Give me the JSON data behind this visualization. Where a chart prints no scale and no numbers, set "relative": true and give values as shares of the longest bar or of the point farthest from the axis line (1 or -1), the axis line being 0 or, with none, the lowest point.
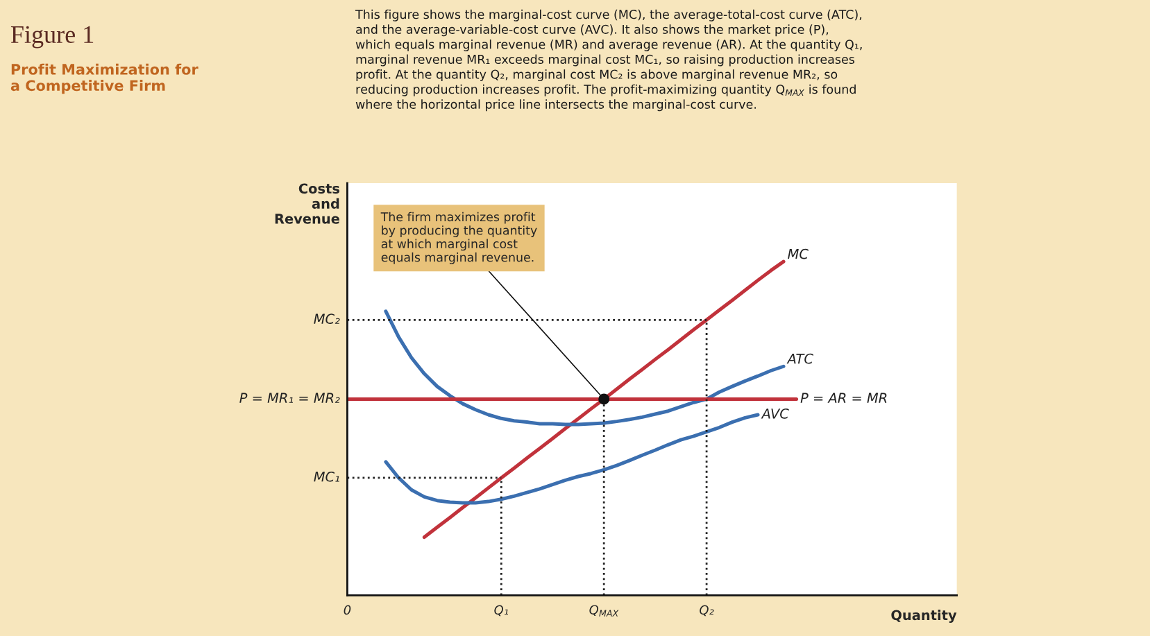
{
  "chart_data": {
    "type": "line",
    "title": "Figure 1",
    "subtitle": "Profit Maximization for\na Competitive Firm",
    "xlabel": "Quantity",
    "ylabel": "Costs\nand\nRevenue",
    "relative": true,
    "legend": false,
    "grid": false,
    "categories": [
      "0",
      null,
      null,
      null,
      null,
      null,
      null,
      null,
      null,
      null,
      null,
      null,
      "Q₁",
      null,
      null,
      null,
      null,
      null,
      null,
      null,
      "Q$_{MAX}$",
      null,
      null,
      null,
      null,
      null,
      null,
      null,
      "Q₂",
      null,
      null,
      null,
      null,
      null,
      null,
      null,
      null,
      null,
      null,
      null,
      null,
      null,
      null,
      null,
      null,
      null,
      null,
      null
    ],
    "series": [
      {
        "name": "MC",
        "color": "#c1323b",
        "values": [
          null,
          null,
          null,
          null,
          null,
          null,
          0.174,
          0.204,
          0.233,
          0.263,
          0.292,
          0.322,
          0.352,
          0.381,
          0.411,
          0.44,
          0.47,
          0.5,
          0.529,
          0.559,
          0.588,
          0.618,
          0.648,
          0.677,
          0.707,
          0.736,
          0.766,
          0.796,
          0.825,
          0.855,
          0.884,
          0.914,
          0.944,
          0.973,
          1.0,
          null,
          null,
          null,
          null,
          null,
          null,
          null,
          null,
          null,
          null,
          null,
          null,
          null
        ]
      },
      {
        "name": "ATC",
        "color": "#3b6fb0",
        "values": [
          null,
          null,
          null,
          0.851,
          0.774,
          0.712,
          0.664,
          0.626,
          0.598,
          0.574,
          0.556,
          0.541,
          0.53,
          0.523,
          0.519,
          0.514,
          0.514,
          0.512,
          0.512,
          0.514,
          0.516,
          0.521,
          0.527,
          0.534,
          0.543,
          0.552,
          0.565,
          0.578,
          0.588,
          0.609,
          0.626,
          0.642,
          0.657,
          0.673,
          0.686,
          null,
          null,
          null,
          null,
          null,
          null,
          null,
          null,
          null,
          null,
          null,
          null,
          null
        ]
      },
      {
        "name": "AVC",
        "color": "#3b6fb0",
        "values": [
          null,
          null,
          null,
          0.4,
          0.352,
          0.316,
          0.295,
          0.284,
          0.279,
          0.277,
          0.277,
          0.281,
          0.288,
          0.297,
          0.308,
          0.319,
          0.332,
          0.345,
          0.356,
          0.365,
          0.376,
          0.389,
          0.404,
          0.42,
          0.435,
          0.451,
          0.466,
          0.477,
          0.49,
          0.503,
          0.519,
          0.532,
          0.541,
          null,
          null,
          null,
          null,
          null,
          null,
          null,
          null,
          null,
          null,
          null,
          null,
          null,
          null,
          null
        ]
      },
      {
        "name": "P = MR₁ = MR₂",
        "color": "#c1323b",
        "values": [
          0.588,
          0.588,
          0.588,
          0.588,
          0.588,
          0.588,
          0.588,
          0.588,
          0.588,
          0.588,
          0.588,
          0.588,
          0.588,
          0.588,
          0.588,
          0.588,
          0.588,
          0.588,
          0.588,
          0.588,
          0.588,
          null,
          null,
          null,
          null,
          null,
          null,
          null,
          null,
          null,
          null,
          null,
          null,
          null,
          null,
          null,
          null,
          null,
          null,
          null,
          null,
          null,
          null,
          null,
          null,
          null,
          null,
          null
        ]
      },
      {
        "name": "P = AR = MR",
        "color": "#c1323b",
        "values": [
          null,
          null,
          null,
          null,
          null,
          null,
          null,
          null,
          null,
          null,
          null,
          null,
          null,
          null,
          null,
          null,
          null,
          null,
          null,
          null,
          0.588,
          0.588,
          0.588,
          0.588,
          0.588,
          0.588,
          0.588,
          0.588,
          0.588,
          0.588,
          0.588,
          0.588,
          0.588,
          0.588,
          0.588,
          0.588,
          null,
          null,
          null,
          null,
          null,
          null,
          null,
          null,
          null,
          null,
          null,
          null
        ]
      },
      {
        "name": "MC₂",
        "color": "#222222",
        "line_style": "dotted",
        "values": [
          0.825,
          0.825,
          0.825,
          0.825,
          0.825,
          0.825,
          0.825,
          0.825,
          0.825,
          0.825,
          0.825,
          0.825,
          0.825,
          0.825,
          0.825,
          0.825,
          0.825,
          0.825,
          0.825,
          0.825,
          0.825,
          0.825,
          0.825,
          0.825,
          0.825,
          0.825,
          0.825,
          0.825,
          0.825,
          null,
          null,
          null,
          null,
          null,
          null,
          null,
          null,
          null,
          null,
          null,
          null,
          null,
          null,
          null,
          null,
          null,
          null,
          null
        ]
      },
      {
        "name": "MC₁",
        "color": "#222222",
        "line_style": "dotted",
        "values": [
          0.352,
          0.352,
          0.352,
          0.352,
          0.352,
          0.352,
          0.352,
          0.352,
          0.352,
          0.352,
          0.352,
          0.352,
          0.352,
          null,
          null,
          null,
          null,
          null,
          null,
          null,
          null,
          null,
          null,
          null,
          null,
          null,
          null,
          null,
          null,
          null,
          null,
          null,
          null,
          null,
          null,
          null,
          null,
          null,
          null,
          null,
          null,
          null,
          null,
          null,
          null,
          null,
          null,
          null
        ]
      },
      {
        "color": "#222222",
        "line_style": "dotted",
        "x": [
          "Q₁",
          "Q₁"
        ],
        "values": [
          0,
          0.352
        ]
      },
      {
        "color": "#222222",
        "line_style": "dotted",
        "x": [
          "Q$_{MAX}$",
          "Q$_{MAX}$"
        ],
        "values": [
          0,
          0.588
        ]
      },
      {
        "color": "#222222",
        "line_style": "dotted",
        "x": [
          "Q₂",
          "Q₂"
        ],
        "values": [
          0,
          0.825
        ]
      },
      {
        "type": "scatter",
        "color": "#111111",
        "marker": "circle",
        "x": [
          "Q$_{MAX}$"
        ],
        "values": [
          0.588
        ]
      }
    ],
    "annotations": [
      "This figure shows the marginal-cost curve (MC), the average-total-cost curve (ATC),\nand the average-variable-cost curve (AVC). It also shows the market price (P),\nwhich equals marginal revenue (MR) and average revenue (AR). At the quantity Q₁,\nmarginal revenue MR₁ exceeds marginal cost MC₁, so raising production increases\nprofit. At the quantity Q₂, marginal cost MC₂ is above marginal revenue MR₂, so\nreducing production increases profit. The profit-maximizing quantity Q$_{MAX}$ is found\nwhere the horizontal price line intersects the marginal-cost curve.",
      {
        "text": "The firm maximizes profit\nby producing the quantity\nat which marginal cost\nequals marginal revenue.",
        "x": "Q$_{MAX}$",
        "y": 0.588
      }
    ]
  }
}
